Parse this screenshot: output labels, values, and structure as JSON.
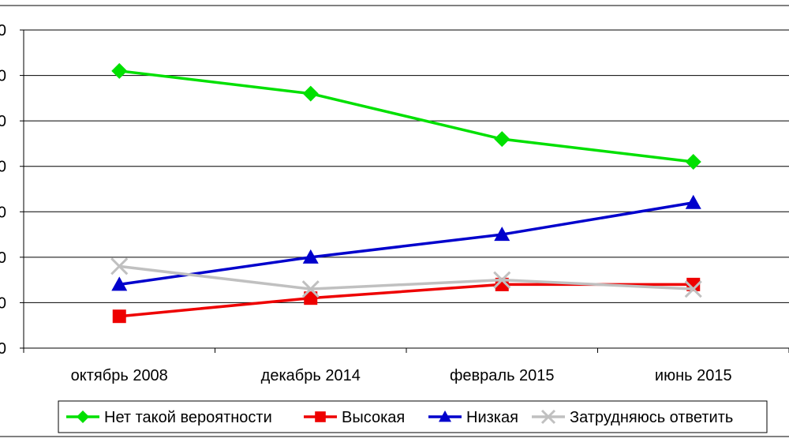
{
  "chart_data": {
    "type": "line",
    "categories": [
      "октябрь 2008",
      "декабрь 2014",
      "февраль 2015",
      "июнь 2015"
    ],
    "ylim": [
      0,
      70
    ],
    "ytick_step": 10,
    "ytick_labels_visible": [
      "0",
      "0",
      "0",
      "0",
      "0",
      "0",
      "0",
      "0"
    ],
    "grid": true,
    "legend_position": "bottom",
    "series": [
      {
        "name": "Нет такой вероятности",
        "values": [
          61,
          56,
          46,
          41
        ],
        "color": "#00e000",
        "marker": "diamond"
      },
      {
        "name": "Высокая",
        "values": [
          7,
          11,
          14,
          14
        ],
        "color": "#ee0000",
        "marker": "square"
      },
      {
        "name": "Низкая",
        "values": [
          14,
          20,
          25,
          32
        ],
        "color": "#0000cc",
        "marker": "triangle"
      },
      {
        "name": "Затрудняюсь ответить",
        "values": [
          18,
          13,
          15,
          13
        ],
        "color": "#c0c0c0",
        "marker": "x"
      }
    ]
  }
}
